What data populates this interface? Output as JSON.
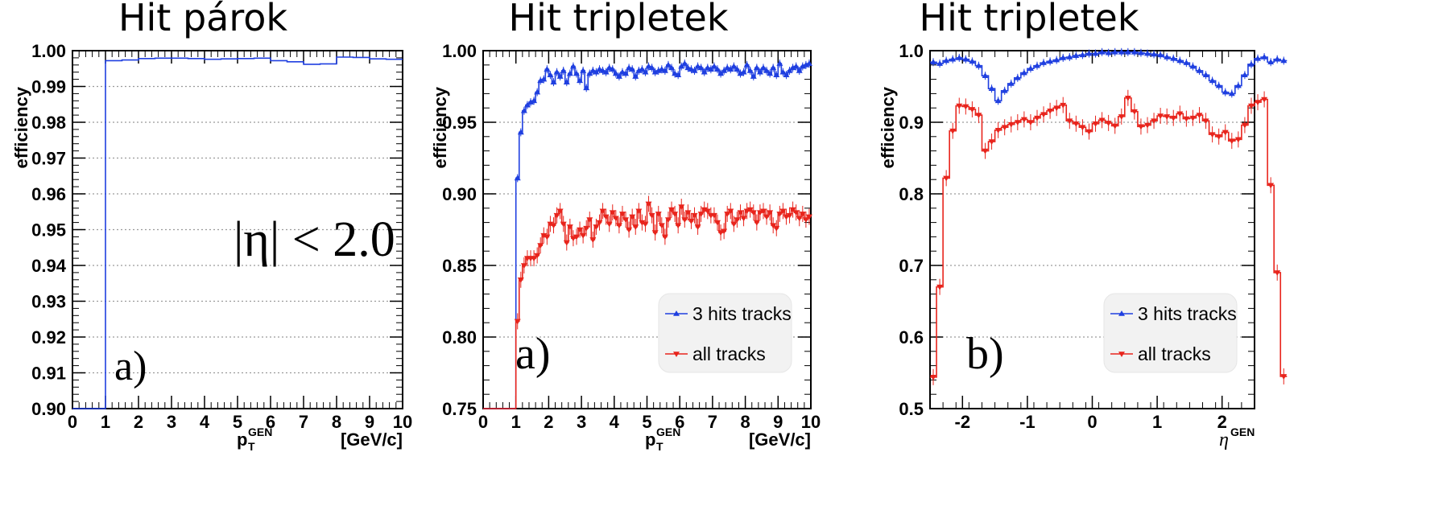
{
  "colors": {
    "blue": "#1f3fe0",
    "red": "#e8241c",
    "grid": "#9a9a9a",
    "legend_bg": "#f2f2f2"
  },
  "chart_data": [
    {
      "type": "line",
      "title": "Hit párok",
      "xlabel": "p",
      "xlabel_sub": "T",
      "xlabel_sup": "GEN",
      "xlabel_unit": "[GeV/c]",
      "ylabel": "efficiency",
      "xlim": [
        0,
        10
      ],
      "ylim": [
        0.9,
        1.0
      ],
      "xticks": [
        0,
        1,
        2,
        3,
        4,
        5,
        6,
        7,
        8,
        9,
        10
      ],
      "xtick_labels": [
        "0",
        "1",
        "2",
        "3",
        "4",
        "5",
        "6",
        "7",
        "8",
        "9",
        "10"
      ],
      "yticks": [
        0.9,
        0.91,
        0.92,
        0.93,
        0.94,
        0.95,
        0.96,
        0.97,
        0.98,
        0.99,
        1.0
      ],
      "ytick_labels": [
        "0.90",
        "0.91",
        "0.92",
        "0.93",
        "0.94",
        "0.95",
        "0.96",
        "0.97",
        "0.98",
        "0.99",
        "1.00"
      ],
      "grid": "horizontal",
      "annotations": [
        "|η| < 2.0",
        "a)"
      ],
      "series": [
        {
          "color": "#1f3fe0",
          "marker": "none",
          "step": true,
          "x": [
            0,
            1,
            1.5,
            2,
            2.5,
            3,
            3.5,
            4,
            4.5,
            5,
            5.5,
            6,
            6.5,
            7,
            7.5,
            8,
            8.5,
            9,
            9.5
          ],
          "values": [
            0.9,
            0.9972,
            0.9974,
            0.9978,
            0.9979,
            0.9979,
            0.9978,
            0.9976,
            0.9977,
            0.9978,
            0.9979,
            0.9972,
            0.9969,
            0.9962,
            0.9963,
            0.9982,
            0.9981,
            0.9977,
            0.9976
          ],
          "x_end": 10
        }
      ]
    },
    {
      "type": "line",
      "title": "Hit tripletek",
      "xlabel": "p",
      "xlabel_sub": "T",
      "xlabel_sup": "GEN",
      "xlabel_unit": "[GeV/c]",
      "ylabel": "efficiency",
      "xlim": [
        0,
        10
      ],
      "ylim": [
        0.75,
        1.0
      ],
      "xticks": [
        0,
        1,
        2,
        3,
        4,
        5,
        6,
        7,
        8,
        9,
        10
      ],
      "xtick_labels": [
        "0",
        "1",
        "2",
        "3",
        "4",
        "5",
        "6",
        "7",
        "8",
        "9",
        "10"
      ],
      "yticks": [
        0.75,
        0.8,
        0.85,
        0.9,
        0.95,
        1.0
      ],
      "ytick_labels": [
        "0.75",
        "0.80",
        "0.85",
        "0.90",
        "0.95",
        "1.00"
      ],
      "grid": "horizontal",
      "annotations": [
        "a)"
      ],
      "legend": {
        "position": "bottom-right",
        "entries": [
          "3 hits tracks",
          "all tracks"
        ]
      },
      "series": [
        {
          "name": "3 hits tracks",
          "color": "#1f3fe0",
          "marker": "triangle-up",
          "step": true,
          "bin_width": 0.1,
          "x_start": 0,
          "values": [
            0.75,
            0.75,
            0.75,
            0.75,
            0.75,
            0.75,
            0.75,
            0.75,
            0.75,
            0.75,
            0.911,
            0.943,
            0.958,
            0.962,
            0.964,
            0.965,
            0.971,
            0.979,
            0.98,
            0.987,
            0.983,
            0.978,
            0.985,
            0.982,
            0.986,
            0.978,
            0.984,
            0.989,
            0.984,
            0.979,
            0.986,
            0.974,
            0.984,
            0.986,
            0.985,
            0.987,
            0.986,
            0.985,
            0.988,
            0.987,
            0.984,
            0.982,
            0.985,
            0.984,
            0.988,
            0.987,
            0.982,
            0.986,
            0.987,
            0.985,
            0.989,
            0.988,
            0.985,
            0.986,
            0.987,
            0.986,
            0.99,
            0.988,
            0.984,
            0.983,
            0.989,
            0.991,
            0.988,
            0.987,
            0.986,
            0.989,
            0.988,
            0.985,
            0.988,
            0.987,
            0.989,
            0.987,
            0.984,
            0.986,
            0.988,
            0.987,
            0.989,
            0.987,
            0.984,
            0.985,
            0.99,
            0.986,
            0.982,
            0.988,
            0.985,
            0.988,
            0.986,
            0.984,
            0.988,
            0.983,
            0.991,
            0.985,
            0.983,
            0.986,
            0.988,
            0.989,
            0.986,
            0.989,
            0.99,
            0.991
          ]
        },
        {
          "name": "all tracks",
          "color": "#e8241c",
          "marker": "triangle-down",
          "step": true,
          "bin_width": 0.1,
          "x_start": 0,
          "values": [
            0.75,
            0.75,
            0.75,
            0.75,
            0.75,
            0.75,
            0.75,
            0.75,
            0.75,
            0.75,
            0.811,
            0.84,
            0.85,
            0.855,
            0.855,
            0.855,
            0.857,
            0.864,
            0.871,
            0.87,
            0.879,
            0.878,
            0.885,
            0.888,
            0.879,
            0.866,
            0.877,
            0.869,
            0.87,
            0.875,
            0.871,
            0.876,
            0.882,
            0.868,
            0.877,
            0.88,
            0.888,
            0.884,
            0.879,
            0.887,
            0.883,
            0.878,
            0.886,
            0.882,
            0.875,
            0.884,
            0.877,
            0.888,
            0.88,
            0.879,
            0.893,
            0.885,
            0.873,
            0.886,
            0.878,
            0.87,
            0.882,
            0.889,
            0.886,
            0.878,
            0.891,
            0.882,
            0.887,
            0.881,
            0.885,
            0.877,
            0.886,
            0.889,
            0.888,
            0.885,
            0.885,
            0.88,
            0.873,
            0.874,
            0.886,
            0.888,
            0.879,
            0.882,
            0.887,
            0.883,
            0.888,
            0.889,
            0.887,
            0.88,
            0.887,
            0.888,
            0.884,
            0.887,
            0.878,
            0.876,
            0.886,
            0.888,
            0.884,
            0.885,
            0.889,
            0.887,
            0.883,
            0.886,
            0.882,
            0.884
          ]
        }
      ]
    },
    {
      "type": "line",
      "title": "Hit tripletek",
      "xlabel": "η",
      "xlabel_sup": "GEN",
      "ylabel": "efficiency",
      "xlim": [
        -2.5,
        2.5
      ],
      "ylim": [
        0.5,
        1.0
      ],
      "xticks": [
        -2,
        -1,
        0,
        1,
        2
      ],
      "xtick_labels": [
        "-2",
        "-1",
        "0",
        "1",
        "2"
      ],
      "yticks": [
        0.5,
        0.6,
        0.7,
        0.8,
        0.9,
        1.0
      ],
      "ytick_labels": [
        "0.5",
        "0.6",
        "0.7",
        "0.8",
        "0.9",
        "1.0"
      ],
      "grid": "horizontal",
      "annotations": [
        "b)"
      ],
      "legend": {
        "position": "bottom-right",
        "entries": [
          "3 hits tracks",
          "all tracks"
        ]
      },
      "series": [
        {
          "name": "3 hits tracks",
          "color": "#1f3fe0",
          "marker": "triangle-up",
          "step": true,
          "bin_width": 0.1,
          "x_start": -2.5,
          "values": [
            0.984,
            0.982,
            0.986,
            0.988,
            0.99,
            0.988,
            0.985,
            0.979,
            0.965,
            0.947,
            0.93,
            0.944,
            0.954,
            0.962,
            0.969,
            0.975,
            0.979,
            0.983,
            0.985,
            0.987,
            0.99,
            0.991,
            0.993,
            0.994,
            0.996,
            0.996,
            0.998,
            0.997,
            0.998,
            0.998,
            0.998,
            0.998,
            0.997,
            0.996,
            0.995,
            0.994,
            0.991,
            0.989,
            0.986,
            0.983,
            0.978,
            0.972,
            0.966,
            0.958,
            0.951,
            0.942,
            0.94,
            0.951,
            0.966,
            0.981,
            0.989,
            0.991,
            0.984,
            0.988,
            0.986
          ]
        },
        {
          "name": "all tracks",
          "color": "#e8241c",
          "marker": "triangle-down",
          "step": true,
          "bin_width": 0.1,
          "x_start": -2.5,
          "values": [
            0.544,
            0.67,
            0.822,
            0.888,
            0.923,
            0.922,
            0.918,
            0.91,
            0.86,
            0.873,
            0.889,
            0.893,
            0.897,
            0.9,
            0.904,
            0.9,
            0.906,
            0.911,
            0.916,
            0.92,
            0.924,
            0.902,
            0.898,
            0.893,
            0.887,
            0.898,
            0.903,
            0.899,
            0.895,
            0.908,
            0.934,
            0.915,
            0.894,
            0.896,
            0.902,
            0.909,
            0.908,
            0.906,
            0.912,
            0.905,
            0.906,
            0.91,
            0.902,
            0.883,
            0.88,
            0.886,
            0.874,
            0.876,
            0.896,
            0.923,
            0.928,
            0.932,
            0.812,
            0.69,
            0.545
          ]
        }
      ]
    }
  ]
}
